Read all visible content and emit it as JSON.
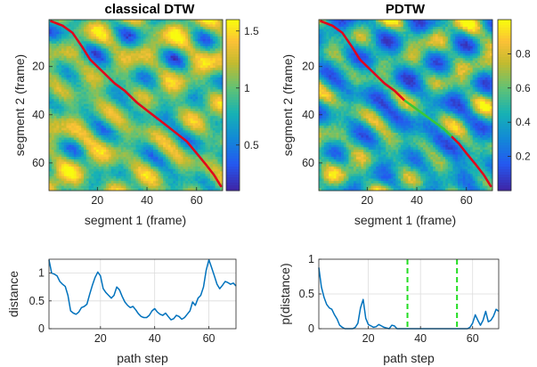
{
  "chart_data": [
    {
      "type": "heatmap",
      "title": "classical DTW",
      "xlabel": "segment 1 (frame)",
      "ylabel": "segment 2 (frame)",
      "xlim": [
        1,
        70
      ],
      "ylim": [
        1,
        71
      ],
      "xticks": [
        "20",
        "40",
        "60"
      ],
      "yticks": [
        "20",
        "40",
        "60"
      ],
      "colorbar": {
        "ticks": [
          "0.5",
          "1",
          "1.5"
        ],
        "range": [
          0.1,
          1.6
        ],
        "colormap": "parula"
      },
      "paths": [
        {
          "color": "#e3001b",
          "points": [
            [
              1,
              1
            ],
            [
              6,
              3
            ],
            [
              10,
              6
            ],
            [
              14,
              12
            ],
            [
              17,
              17
            ],
            [
              22,
              22
            ],
            [
              27,
              27
            ],
            [
              31,
              30
            ],
            [
              36,
              35
            ],
            [
              41,
              39
            ],
            [
              46,
              43
            ],
            [
              51,
              47
            ],
            [
              56,
              51
            ],
            [
              60,
              56
            ],
            [
              64,
              61
            ],
            [
              67,
              65
            ],
            [
              70,
              70
            ]
          ]
        }
      ]
    },
    {
      "type": "heatmap",
      "title": "PDTW",
      "xlabel": "segment 1 (frame)",
      "ylabel": "segment 2 (frame)",
      "xlim": [
        1,
        70
      ],
      "ylim": [
        1,
        71
      ],
      "xticks": [
        "20",
        "40",
        "60"
      ],
      "yticks": [
        "20",
        "40",
        "60"
      ],
      "colorbar": {
        "ticks": [
          "0.2",
          "0.4",
          "0.6",
          "0.8"
        ],
        "range": [
          0,
          1
        ],
        "colormap": "parula"
      },
      "paths": [
        {
          "color": "#e3001b",
          "points": [
            [
              1,
              1
            ],
            [
              6,
              3
            ],
            [
              10,
              6
            ],
            [
              14,
              12
            ],
            [
              17,
              17
            ],
            [
              22,
              22
            ],
            [
              27,
              27
            ],
            [
              31,
              30
            ],
            [
              35,
              34
            ]
          ]
        },
        {
          "color": "#37c837",
          "points": [
            [
              35,
              34
            ],
            [
              39,
              37
            ],
            [
              43,
              40
            ],
            [
              47,
              43
            ],
            [
              51,
              46
            ],
            [
              54,
              49
            ]
          ]
        },
        {
          "color": "#e3001b",
          "points": [
            [
              54,
              49
            ],
            [
              57,
              52
            ],
            [
              60,
              56
            ],
            [
              64,
              61
            ],
            [
              67,
              65
            ],
            [
              70,
              70
            ]
          ]
        }
      ]
    },
    {
      "type": "line",
      "xlabel": "path step",
      "ylabel": "distance",
      "xlim": [
        1,
        70
      ],
      "ylim": [
        0,
        1.25
      ],
      "xticks": [
        "20",
        "40",
        "60"
      ],
      "yticks": [
        "0",
        "0.5",
        "1"
      ],
      "series": [
        {
          "color": "#0072bd",
          "x": [
            1,
            2,
            3,
            4,
            5,
            6,
            7,
            8,
            9,
            10,
            11,
            12,
            13,
            14,
            15,
            16,
            17,
            18,
            19,
            20,
            21,
            22,
            23,
            24,
            25,
            26,
            27,
            28,
            29,
            30,
            31,
            32,
            33,
            34,
            35,
            36,
            37,
            38,
            39,
            40,
            41,
            42,
            43,
            44,
            45,
            46,
            47,
            48,
            49,
            50,
            51,
            52,
            53,
            54,
            55,
            56,
            57,
            58,
            59,
            60,
            61,
            62,
            63,
            64,
            65,
            66,
            67,
            68,
            69,
            70
          ],
          "values": [
            1.24,
            1.0,
            0.98,
            0.95,
            0.85,
            0.8,
            0.76,
            0.6,
            0.32,
            0.28,
            0.26,
            0.3,
            0.38,
            0.4,
            0.44,
            0.62,
            0.78,
            0.92,
            1.02,
            0.95,
            0.72,
            0.65,
            0.6,
            0.55,
            0.6,
            0.75,
            0.7,
            0.58,
            0.48,
            0.42,
            0.38,
            0.4,
            0.34,
            0.27,
            0.22,
            0.2,
            0.2,
            0.24,
            0.32,
            0.36,
            0.3,
            0.26,
            0.24,
            0.28,
            0.22,
            0.16,
            0.18,
            0.24,
            0.22,
            0.17,
            0.2,
            0.26,
            0.32,
            0.48,
            0.42,
            0.55,
            0.6,
            0.75,
            1.05,
            1.24,
            1.1,
            0.95,
            0.8,
            0.72,
            0.78,
            0.85,
            0.83,
            0.8,
            0.82,
            0.77
          ]
        }
      ]
    },
    {
      "type": "line",
      "xlabel": "path step",
      "ylabel": "p(distance)",
      "xlim": [
        1,
        70
      ],
      "ylim": [
        0,
        1
      ],
      "xticks": [
        "20",
        "40",
        "60"
      ],
      "yticks": [
        "0",
        "0.5",
        "1"
      ],
      "vlines": [
        35,
        54
      ],
      "series": [
        {
          "color": "#0072bd",
          "x": [
            1,
            2,
            3,
            4,
            5,
            6,
            7,
            8,
            9,
            10,
            11,
            12,
            13,
            14,
            15,
            16,
            17,
            18,
            19,
            20,
            21,
            22,
            23,
            24,
            25,
            26,
            27,
            28,
            29,
            30,
            31,
            32,
            33,
            34,
            35,
            36,
            37,
            38,
            39,
            40,
            41,
            42,
            43,
            44,
            45,
            46,
            47,
            48,
            49,
            50,
            51,
            52,
            53,
            54,
            55,
            56,
            57,
            58,
            59,
            60,
            61,
            62,
            63,
            64,
            65,
            66,
            67,
            68,
            69,
            70
          ],
          "values": [
            0.88,
            0.6,
            0.45,
            0.35,
            0.3,
            0.28,
            0.2,
            0.14,
            0.05,
            0.02,
            0.0,
            0.0,
            0.0,
            0.0,
            0.02,
            0.08,
            0.3,
            0.42,
            0.15,
            0.06,
            0.04,
            0.02,
            0.03,
            0.06,
            0.04,
            0.02,
            0.01,
            0.0,
            0.05,
            0.04,
            0.0,
            0.0,
            0.0,
            0.0,
            0.0,
            0.0,
            0.0,
            0.0,
            0.0,
            0.0,
            0.0,
            0.0,
            0.0,
            0.0,
            0.0,
            0.0,
            0.0,
            0.0,
            0.0,
            0.0,
            0.0,
            0.0,
            0.0,
            0.0,
            0.0,
            0.0,
            0.0,
            0.0,
            0.02,
            0.08,
            0.2,
            0.12,
            0.05,
            0.12,
            0.25,
            0.1,
            0.12,
            0.18,
            0.28,
            0.25
          ]
        }
      ]
    }
  ]
}
